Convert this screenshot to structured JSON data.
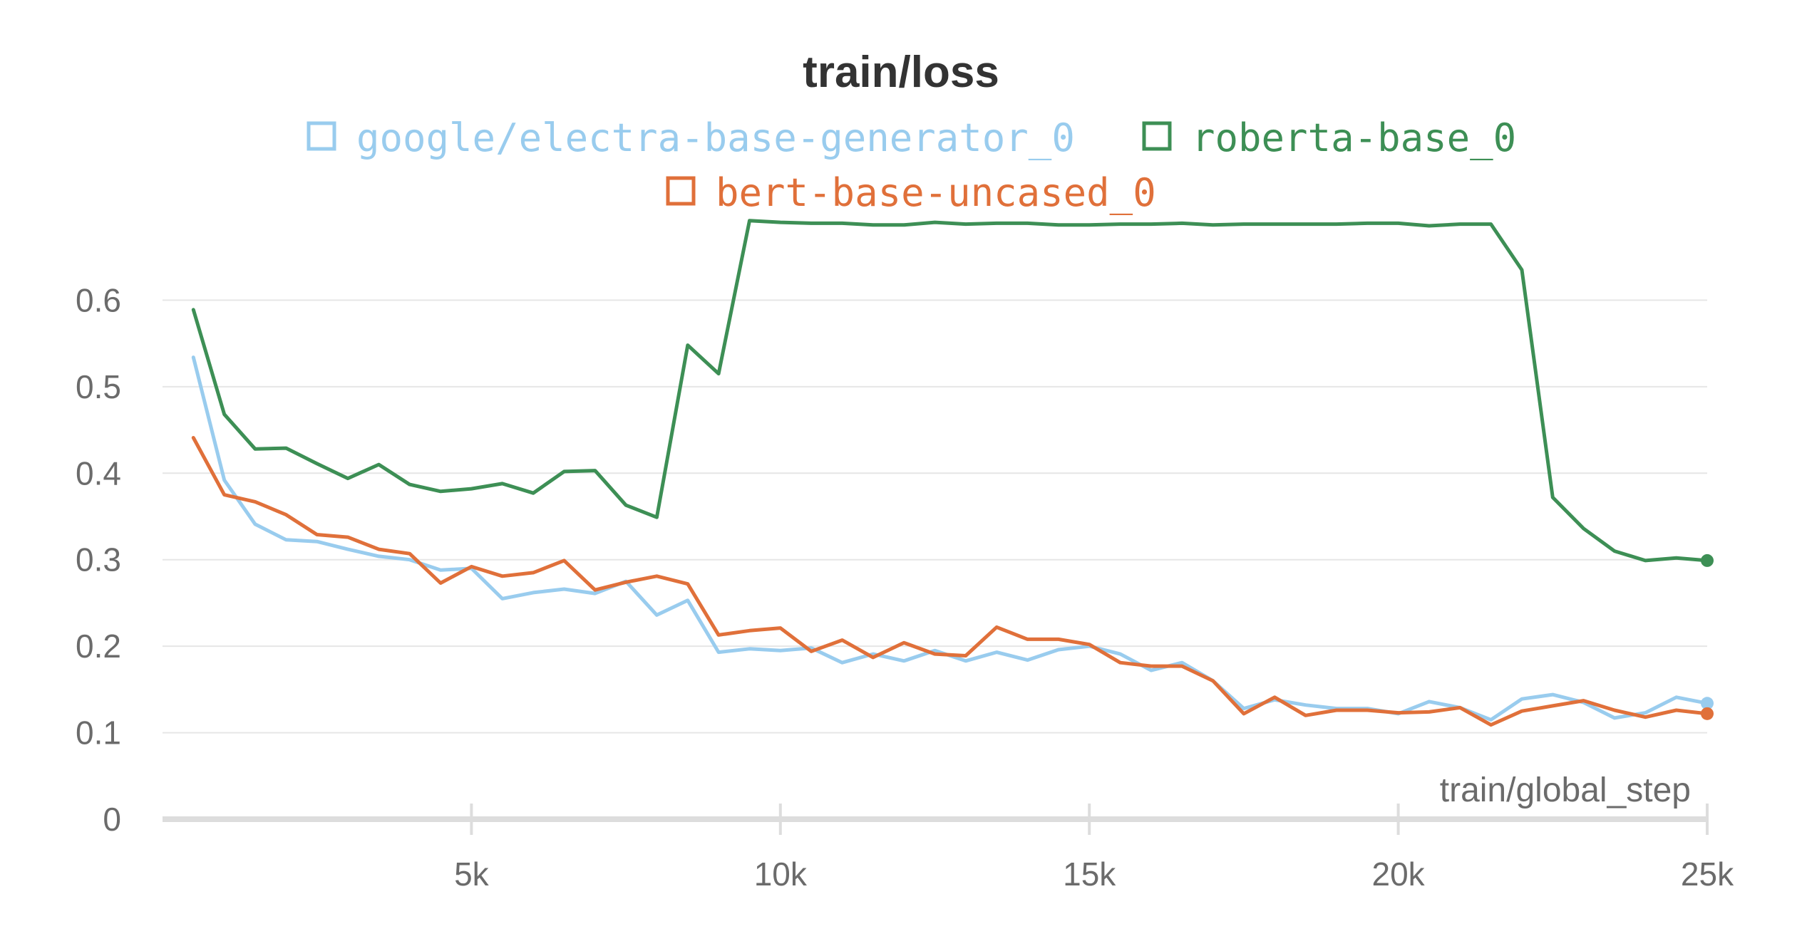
{
  "chart_data": {
    "type": "line",
    "title": "train/loss",
    "xlabel": "train/global_step",
    "ylabel": "",
    "xlim": [
      0,
      25000
    ],
    "ylim": [
      0,
      0.7
    ],
    "x_ticks": [
      5000,
      10000,
      15000,
      20000,
      25000
    ],
    "x_tick_labels": [
      "5k",
      "10k",
      "15k",
      "20k",
      "25k"
    ],
    "y_ticks": [
      0,
      0.1,
      0.2,
      0.3,
      0.4,
      0.5,
      0.6
    ],
    "y_tick_labels": [
      "0",
      "0.1",
      "0.2",
      "0.3",
      "0.4",
      "0.5",
      "0.6"
    ],
    "grid": "horizontal",
    "legend_position": "top",
    "series": [
      {
        "name": "google/electra-base-generator_0",
        "color": "#99ccee",
        "x": [
          500,
          1000,
          1500,
          2000,
          2500,
          3000,
          3500,
          4000,
          4500,
          5000,
          5500,
          6000,
          6500,
          7000,
          7500,
          8000,
          8500,
          9000,
          9500,
          10000,
          10500,
          11000,
          11500,
          12000,
          12500,
          13000,
          13500,
          14000,
          14500,
          15000,
          15500,
          16000,
          16500,
          17000,
          17500,
          18000,
          18500,
          19000,
          19500,
          20000,
          20500,
          21000,
          21500,
          22000,
          22500,
          23000,
          23500,
          24000,
          24500,
          25000
        ],
        "values": [
          0.534,
          0.392,
          0.341,
          0.323,
          0.321,
          0.312,
          0.304,
          0.3,
          0.288,
          0.29,
          0.255,
          0.262,
          0.266,
          0.261,
          0.275,
          0.236,
          0.253,
          0.193,
          0.197,
          0.195,
          0.198,
          0.181,
          0.191,
          0.183,
          0.195,
          0.183,
          0.193,
          0.184,
          0.196,
          0.2,
          0.191,
          0.172,
          0.181,
          0.16,
          0.128,
          0.138,
          0.132,
          0.128,
          0.128,
          0.122,
          0.136,
          0.129,
          0.115,
          0.139,
          0.144,
          0.135,
          0.117,
          0.123,
          0.141,
          0.134
        ]
      },
      {
        "name": "roberta-base_0",
        "color": "#3d8f55",
        "x": [
          500,
          1000,
          1500,
          2000,
          2500,
          3000,
          3500,
          4000,
          4500,
          5000,
          5500,
          6000,
          6500,
          7000,
          7500,
          8000,
          8500,
          9000,
          9500,
          10000,
          10500,
          11000,
          11500,
          12000,
          12500,
          13000,
          13500,
          14000,
          14500,
          15000,
          15500,
          16000,
          16500,
          17000,
          17500,
          18000,
          18500,
          19000,
          19500,
          20000,
          20500,
          21000,
          21500,
          22000,
          22500,
          23000,
          23500,
          24000,
          24500,
          25000
        ],
        "values": [
          0.589,
          0.468,
          0.428,
          0.429,
          0.411,
          0.394,
          0.41,
          0.387,
          0.379,
          0.382,
          0.388,
          0.377,
          0.402,
          0.403,
          0.363,
          0.349,
          0.548,
          0.515,
          0.692,
          0.69,
          0.689,
          0.689,
          0.687,
          0.687,
          0.69,
          0.688,
          0.689,
          0.689,
          0.687,
          0.687,
          0.688,
          0.688,
          0.689,
          0.687,
          0.688,
          0.688,
          0.688,
          0.688,
          0.689,
          0.689,
          0.686,
          0.688,
          0.688,
          0.635,
          0.372,
          0.336,
          0.31,
          0.299,
          0.302,
          0.299
        ]
      },
      {
        "name": "bert-base-uncased_0",
        "color": "#e0703a",
        "x": [
          500,
          1000,
          1500,
          2000,
          2500,
          3000,
          3500,
          4000,
          4500,
          5000,
          5500,
          6000,
          6500,
          7000,
          7500,
          8000,
          8500,
          9000,
          9500,
          10000,
          10500,
          11000,
          11500,
          12000,
          12500,
          13000,
          13500,
          14000,
          14500,
          15000,
          15500,
          16000,
          16500,
          17000,
          17500,
          18000,
          18500,
          19000,
          19500,
          20000,
          20500,
          21000,
          21500,
          22000,
          22500,
          23000,
          23500,
          24000,
          24500,
          25000
        ],
        "values": [
          0.441,
          0.375,
          0.367,
          0.352,
          0.329,
          0.326,
          0.312,
          0.307,
          0.273,
          0.292,
          0.281,
          0.285,
          0.299,
          0.265,
          0.274,
          0.281,
          0.272,
          0.213,
          0.218,
          0.221,
          0.194,
          0.207,
          0.187,
          0.204,
          0.191,
          0.189,
          0.222,
          0.208,
          0.208,
          0.202,
          0.181,
          0.177,
          0.177,
          0.16,
          0.122,
          0.141,
          0.12,
          0.126,
          0.126,
          0.123,
          0.124,
          0.129,
          0.109,
          0.125,
          0.131,
          0.137,
          0.126,
          0.118,
          0.126,
          0.122
        ]
      }
    ]
  }
}
